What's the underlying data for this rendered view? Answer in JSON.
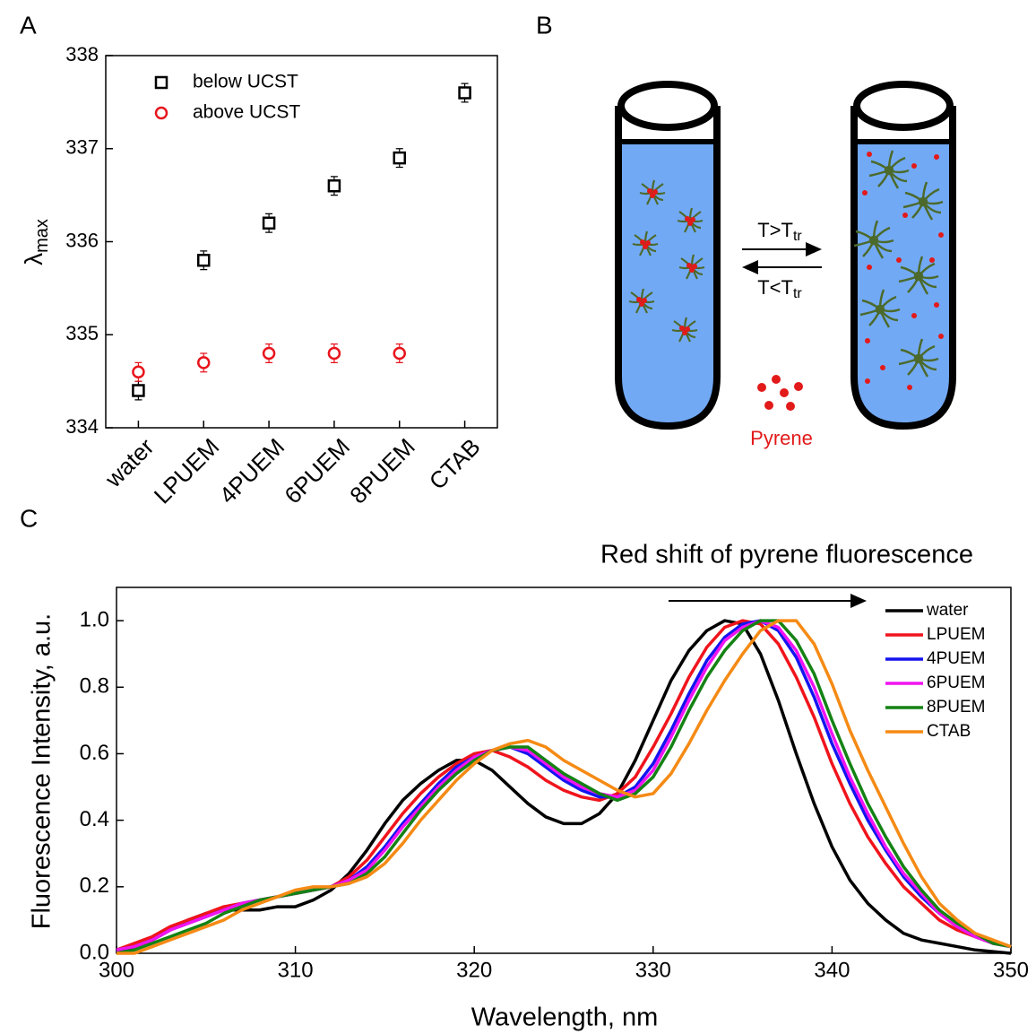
{
  "panel_labels": [
    "A",
    "B",
    "C"
  ],
  "diagram": {
    "arrow_forward": {
      "text": "T>T",
      "sub": "tr"
    },
    "arrow_back": {
      "text": "T<T",
      "sub": "tr"
    },
    "pyrene_label": "Pyrene"
  },
  "chart_data": [
    {
      "type": "scatter",
      "ylabel": "λ",
      "ylabel_sub": "max",
      "categories": [
        "water",
        "LPUEM",
        "4PUEM",
        "6PUEM",
        "8PUEM",
        "CTAB"
      ],
      "series": [
        {
          "name": "below UCST",
          "color": "#000000",
          "marker": "square",
          "values": [
            334.4,
            335.8,
            336.2,
            336.6,
            336.9,
            337.6
          ],
          "errors": [
            0.1,
            0.1,
            0.1,
            0.1,
            0.1,
            0.1
          ]
        },
        {
          "name": "above UCST",
          "color": "#e8141c",
          "marker": "circle",
          "values": [
            334.6,
            334.7,
            334.8,
            334.8,
            334.8,
            null
          ],
          "errors": [
            0.1,
            0.1,
            0.1,
            0.1,
            0.1,
            null
          ]
        }
      ],
      "ylim": [
        334,
        338
      ],
      "yticks": [
        334,
        335,
        336,
        337,
        338
      ],
      "legend": "upper left"
    },
    {
      "type": "line",
      "title": "Red shift of pyrene fluorescence",
      "xlabel": "Wavelength, nm",
      "ylabel": "Fluorescence Intensity, a.u.",
      "x": [
        300,
        301,
        302,
        303,
        304,
        305,
        306,
        307,
        308,
        309,
        310,
        311,
        312,
        313,
        314,
        315,
        316,
        317,
        318,
        319,
        320,
        321,
        322,
        323,
        324,
        325,
        326,
        327,
        328,
        329,
        330,
        331,
        332,
        333,
        334,
        335,
        336,
        337,
        338,
        339,
        340,
        341,
        342,
        343,
        344,
        345,
        346,
        347,
        348,
        349,
        350
      ],
      "series": [
        {
          "name": "water",
          "color": "#000000",
          "values": [
            0.0,
            0.02,
            0.04,
            0.07,
            0.1,
            0.12,
            0.13,
            0.13,
            0.13,
            0.14,
            0.14,
            0.16,
            0.19,
            0.24,
            0.31,
            0.39,
            0.46,
            0.51,
            0.55,
            0.58,
            0.58,
            0.55,
            0.5,
            0.45,
            0.41,
            0.39,
            0.39,
            0.42,
            0.48,
            0.58,
            0.7,
            0.82,
            0.91,
            0.97,
            1.0,
            0.99,
            0.9,
            0.76,
            0.6,
            0.45,
            0.32,
            0.22,
            0.15,
            0.1,
            0.06,
            0.04,
            0.03,
            0.02,
            0.01,
            0.005,
            0.0
          ]
        },
        {
          "name": "LPUEM",
          "color": "#f0141c",
          "values": [
            0.01,
            0.03,
            0.05,
            0.08,
            0.1,
            0.12,
            0.14,
            0.15,
            0.16,
            0.17,
            0.18,
            0.19,
            0.2,
            0.23,
            0.28,
            0.35,
            0.42,
            0.48,
            0.53,
            0.57,
            0.6,
            0.61,
            0.59,
            0.56,
            0.52,
            0.49,
            0.47,
            0.46,
            0.48,
            0.53,
            0.62,
            0.72,
            0.83,
            0.92,
            0.98,
            1.0,
            0.99,
            0.93,
            0.83,
            0.71,
            0.57,
            0.45,
            0.35,
            0.27,
            0.2,
            0.15,
            0.1,
            0.07,
            0.05,
            0.03,
            0.02
          ]
        },
        {
          "name": "4PUEM",
          "color": "#1414f0",
          "values": [
            0.01,
            0.02,
            0.04,
            0.07,
            0.09,
            0.11,
            0.13,
            0.15,
            0.16,
            0.17,
            0.18,
            0.19,
            0.2,
            0.22,
            0.26,
            0.32,
            0.39,
            0.45,
            0.51,
            0.56,
            0.59,
            0.61,
            0.62,
            0.6,
            0.56,
            0.52,
            0.49,
            0.47,
            0.47,
            0.5,
            0.57,
            0.67,
            0.78,
            0.88,
            0.95,
            0.99,
            1.0,
            0.97,
            0.89,
            0.77,
            0.63,
            0.51,
            0.4,
            0.31,
            0.23,
            0.17,
            0.12,
            0.08,
            0.05,
            0.03,
            0.02
          ]
        },
        {
          "name": "6PUEM",
          "color": "#f014f0",
          "values": [
            0.01,
            0.02,
            0.04,
            0.07,
            0.09,
            0.11,
            0.13,
            0.15,
            0.16,
            0.17,
            0.18,
            0.19,
            0.2,
            0.22,
            0.25,
            0.31,
            0.38,
            0.44,
            0.5,
            0.55,
            0.59,
            0.61,
            0.62,
            0.61,
            0.57,
            0.53,
            0.5,
            0.48,
            0.47,
            0.49,
            0.55,
            0.65,
            0.76,
            0.86,
            0.94,
            0.98,
            1.0,
            0.98,
            0.91,
            0.8,
            0.66,
            0.53,
            0.42,
            0.32,
            0.24,
            0.18,
            0.12,
            0.08,
            0.05,
            0.03,
            0.02
          ]
        },
        {
          "name": "8PUEM",
          "color": "#148214",
          "values": [
            0.0,
            0.01,
            0.03,
            0.05,
            0.07,
            0.09,
            0.12,
            0.14,
            0.16,
            0.17,
            0.18,
            0.19,
            0.2,
            0.21,
            0.24,
            0.29,
            0.36,
            0.43,
            0.49,
            0.54,
            0.58,
            0.61,
            0.62,
            0.62,
            0.58,
            0.54,
            0.51,
            0.48,
            0.46,
            0.48,
            0.53,
            0.62,
            0.73,
            0.83,
            0.91,
            0.97,
            1.0,
            1.0,
            0.94,
            0.84,
            0.7,
            0.57,
            0.45,
            0.35,
            0.26,
            0.19,
            0.13,
            0.09,
            0.06,
            0.03,
            0.02
          ]
        },
        {
          "name": "CTAB",
          "color": "#f58a14",
          "values": [
            0.0,
            0.0,
            0.02,
            0.04,
            0.06,
            0.08,
            0.1,
            0.13,
            0.15,
            0.17,
            0.19,
            0.2,
            0.2,
            0.21,
            0.23,
            0.27,
            0.33,
            0.4,
            0.46,
            0.52,
            0.57,
            0.61,
            0.63,
            0.64,
            0.62,
            0.58,
            0.55,
            0.52,
            0.49,
            0.47,
            0.48,
            0.54,
            0.63,
            0.73,
            0.82,
            0.9,
            0.97,
            1.0,
            1.0,
            0.93,
            0.81,
            0.67,
            0.55,
            0.44,
            0.33,
            0.23,
            0.15,
            0.1,
            0.06,
            0.04,
            0.02
          ]
        }
      ],
      "xlim": [
        300,
        350
      ],
      "xticks": [
        300,
        310,
        320,
        330,
        340,
        350
      ],
      "ylim": [
        0,
        1.1
      ],
      "yticks": [
        {
          "value": 0,
          "label": "0.0"
        },
        0.2,
        0.4,
        0.6,
        0.8,
        {
          "value": 1,
          "label": "1.0"
        }
      ],
      "legend": "upper right"
    }
  ]
}
